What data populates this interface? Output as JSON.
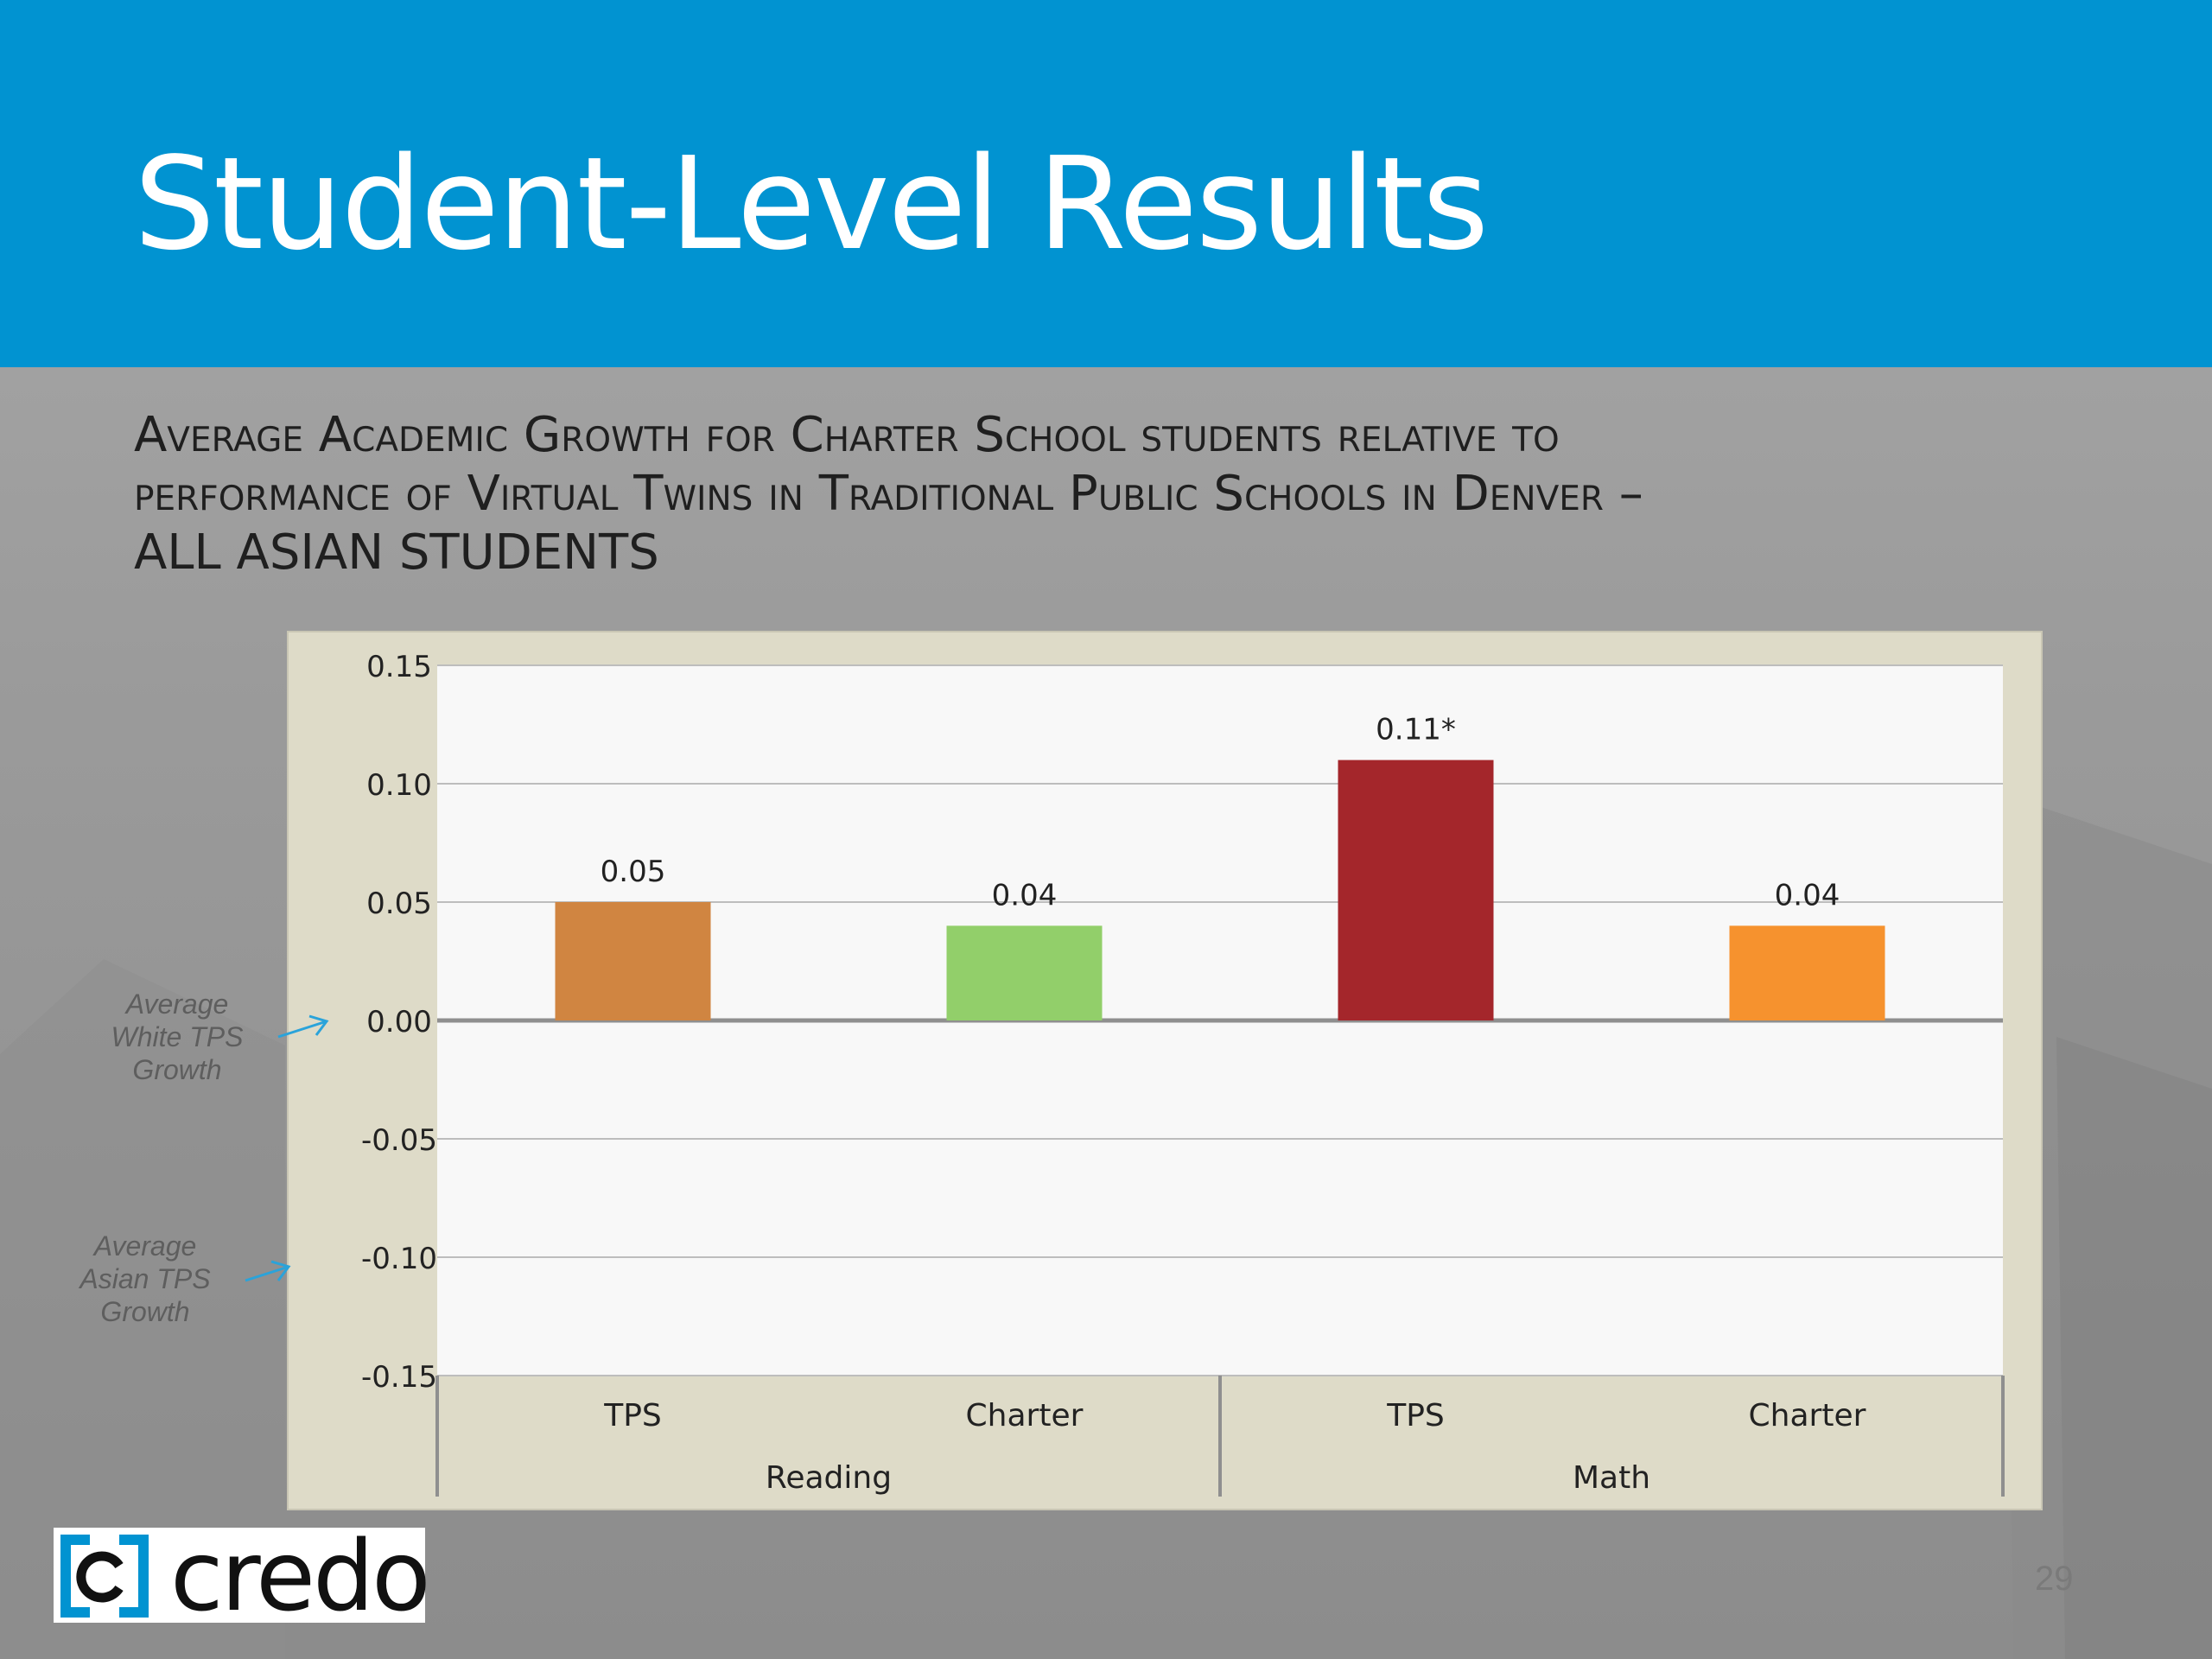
{
  "slide": {
    "title": "Student-Level Results",
    "subtitle_lines": [
      "Average Academic Growth for Charter School students relative to",
      "performance of Virtual Twins in Traditional Public Schools in Denver –",
      "ALL ASIAN STUDENTS"
    ],
    "page_number": "29",
    "logo_text": "credo"
  },
  "annotations": {
    "white_tps": [
      "Average",
      "White TPS",
      "Growth"
    ],
    "asian_tps": [
      "Average",
      "Asian TPS",
      "Growth"
    ]
  },
  "colors": {
    "header": "#0193d1",
    "reading_tps": "#d08541",
    "reading_charter": "#92cf6a",
    "math_tps": "#a4262b",
    "math_charter": "#f6922e",
    "arrow": "#2aa3da"
  },
  "chart_data": {
    "type": "bar",
    "groups": [
      "Reading",
      "Math"
    ],
    "categories": [
      "TPS",
      "Charter",
      "TPS",
      "Charter"
    ],
    "category_groups": [
      "Reading",
      "Reading",
      "Math",
      "Math"
    ],
    "values": [
      0.05,
      0.04,
      0.11,
      0.04
    ],
    "data_labels": [
      "0.05",
      "0.04",
      "0.11*",
      "0.04"
    ],
    "yticks": [
      "0.15",
      "0.10",
      "0.05",
      "0.00",
      "-0.05",
      "-0.10",
      "-0.15"
    ],
    "ylim": [
      -0.15,
      0.15
    ],
    "grid": true,
    "legend": "none"
  }
}
